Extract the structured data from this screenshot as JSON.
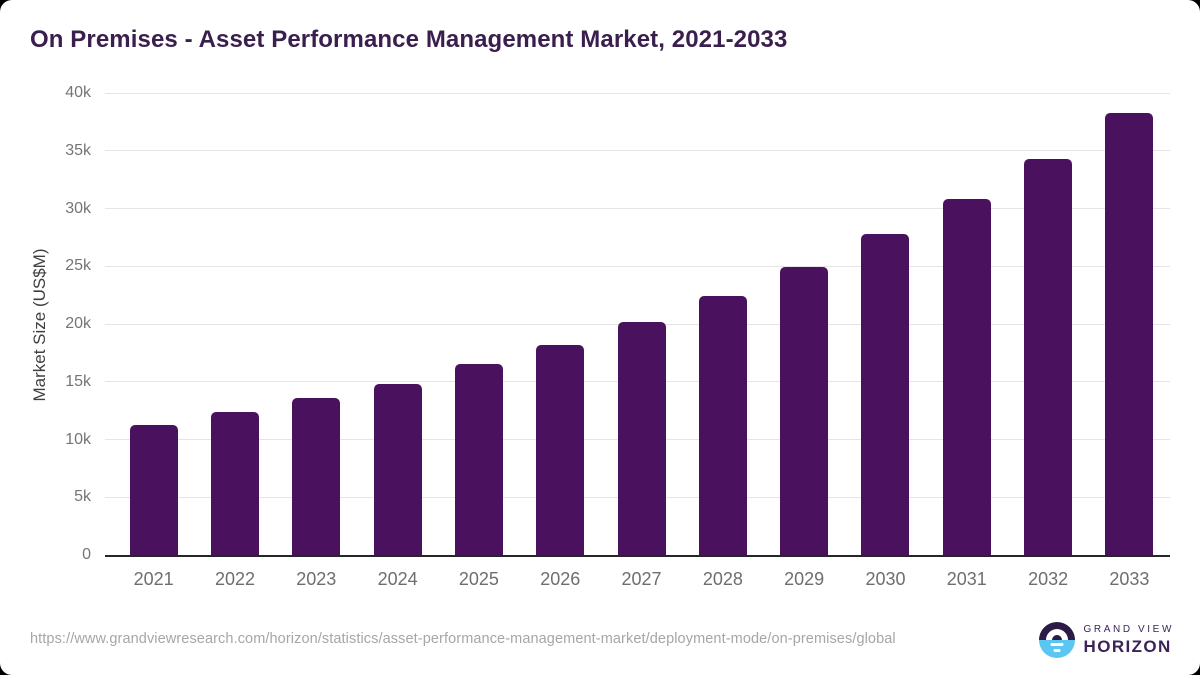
{
  "chart_data": {
    "type": "bar",
    "title": "On Premises - Asset Performance Management Market, 2021-2033",
    "xlabel": "",
    "ylabel": "Market Size (US$M)",
    "categories": [
      "2021",
      "2022",
      "2023",
      "2024",
      "2025",
      "2026",
      "2027",
      "2028",
      "2029",
      "2030",
      "2031",
      "2032",
      "2033"
    ],
    "values": [
      11300,
      12400,
      13600,
      14800,
      16500,
      18200,
      20200,
      22400,
      24900,
      27800,
      30800,
      34300,
      38300
    ],
    "ylim": [
      0,
      40000
    ],
    "ytick_values": [
      0,
      5000,
      10000,
      15000,
      20000,
      25000,
      30000,
      35000,
      40000
    ],
    "ytick_labels": [
      "0",
      "5k",
      "10k",
      "15k",
      "20k",
      "25k",
      "30k",
      "35k",
      "40k"
    ],
    "grid": true,
    "legend": "none"
  },
  "footer": {
    "source_url": "https://www.grandviewresearch.com/horizon/statistics/asset-performance-management-market/deployment-mode/on-premises/global",
    "logo": {
      "icon": "horizon-sun-icon",
      "brand_top": "GRAND VIEW",
      "brand_bottom": "HORIZON"
    }
  },
  "colors": {
    "title": "#3A1F4E",
    "bar": "#4A125E",
    "axis_line": "#262626",
    "gridline": "#E5E5E5",
    "tick_label": "#757575",
    "axis_title": "#3F3F3F",
    "x_label": "#6E6E6E",
    "source_url": "#A6A6A6",
    "logo_dark": "#2B1B45",
    "logo_light": "#5BC6F2",
    "logo_text": "#3A2457",
    "card_background": "#FFFFFF",
    "page_background": "#000000"
  }
}
